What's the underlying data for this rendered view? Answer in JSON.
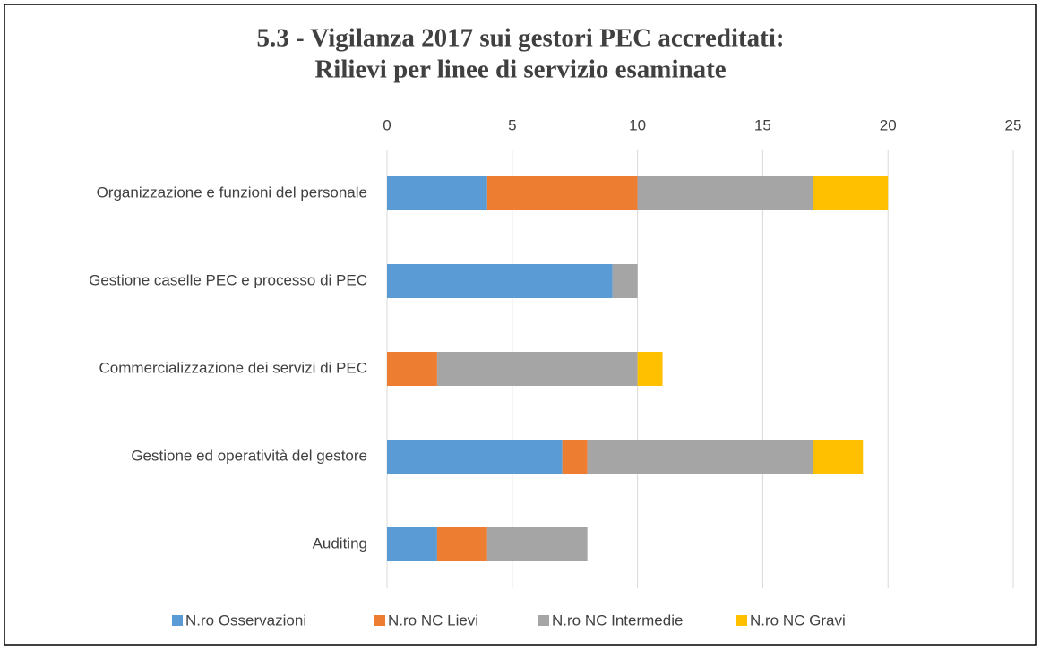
{
  "chart_data": {
    "type": "stacked-bar-horizontal",
    "title": [
      "5.3 - Vigilanza 2017 sui gestori PEC  accreditati:",
      "Rilievi per linee di servizio esaminate"
    ],
    "categories": [
      "Organizzazione e funzioni del personale",
      "Gestione caselle PEC e processo di PEC",
      "Commercializzazione dei servizi di PEC",
      "Gestione ed operatività del gestore",
      "Auditing"
    ],
    "series": [
      {
        "name": "N.ro Osservazioni",
        "color": "#5b9bd5",
        "values": [
          4,
          9,
          0,
          7,
          2
        ]
      },
      {
        "name": "N.ro NC Lievi",
        "color": "#ed7d31",
        "values": [
          6,
          0,
          2,
          1,
          2
        ]
      },
      {
        "name": "N.ro NC Intermedie",
        "color": "#a5a5a5",
        "values": [
          7,
          1,
          8,
          9,
          4
        ]
      },
      {
        "name": "N.ro NC Gravi",
        "color": "#ffc000",
        "values": [
          3,
          0,
          1,
          2,
          0
        ]
      }
    ],
    "xlim": [
      0,
      25
    ],
    "xticks": [
      0,
      5,
      10,
      15,
      20,
      25
    ],
    "grid": true,
    "legend": "bottom"
  }
}
